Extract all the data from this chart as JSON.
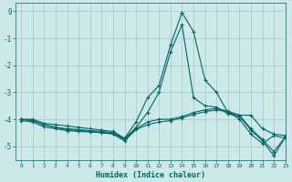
{
  "background_color": "#cce8e8",
  "grid_color": "#aacccc",
  "line_color": "#006666",
  "xlabel": "Humidex (Indice chaleur)",
  "xlim": [
    -0.5,
    23
  ],
  "ylim": [
    -5.5,
    0.3
  ],
  "yticks": [
    0,
    -1,
    -2,
    -3,
    -4,
    -5
  ],
  "xticks": [
    0,
    1,
    2,
    3,
    4,
    5,
    6,
    7,
    8,
    9,
    10,
    11,
    12,
    13,
    14,
    15,
    16,
    17,
    18,
    19,
    20,
    21,
    22,
    23
  ],
  "series": [
    {
      "x": [
        0,
        1,
        2,
        3,
        4,
        5,
        6,
        7,
        8,
        9,
        10,
        11,
        12,
        13,
        14,
        15,
        16,
        17,
        18,
        19,
        20,
        21,
        22,
        23
      ],
      "y": [
        -4.0,
        -4.0,
        -4.15,
        -4.2,
        -4.25,
        -4.3,
        -4.35,
        -4.4,
        -4.45,
        -4.7,
        -4.1,
        -3.2,
        -2.75,
        -1.25,
        -0.05,
        -0.75,
        -2.55,
        -3.0,
        -3.75,
        -3.85,
        -3.85,
        -4.35,
        -4.55,
        -4.6
      ]
    },
    {
      "x": [
        0,
        1,
        2,
        3,
        4,
        5,
        6,
        7,
        8,
        9,
        10,
        11,
        12,
        13,
        14,
        15,
        16,
        17,
        18,
        19,
        20,
        21,
        22,
        23
      ],
      "y": [
        -4.0,
        -4.05,
        -4.2,
        -4.3,
        -4.35,
        -4.38,
        -4.42,
        -4.45,
        -4.5,
        -4.72,
        -4.3,
        -3.75,
        -3.0,
        -1.5,
        -0.5,
        -3.2,
        -3.5,
        -3.55,
        -3.8,
        -3.9,
        -4.4,
        -4.8,
        -5.35,
        -4.65
      ]
    },
    {
      "x": [
        0,
        1,
        2,
        3,
        4,
        5,
        6,
        7,
        8,
        9,
        10,
        11,
        12,
        13,
        14,
        15,
        16,
        17,
        18,
        19,
        20,
        21,
        22,
        23
      ],
      "y": [
        -4.0,
        -4.05,
        -4.2,
        -4.3,
        -4.38,
        -4.42,
        -4.45,
        -4.48,
        -4.52,
        -4.75,
        -4.35,
        -4.1,
        -4.0,
        -4.0,
        -3.9,
        -3.75,
        -3.65,
        -3.6,
        -3.7,
        -3.85,
        -4.35,
        -4.75,
        -5.2,
        -4.65
      ]
    },
    {
      "x": [
        0,
        1,
        2,
        3,
        4,
        5,
        6,
        7,
        8,
        9,
        10,
        11,
        12,
        13,
        14,
        15,
        16,
        17,
        18,
        19,
        20,
        21,
        22,
        23
      ],
      "y": [
        -4.05,
        -4.1,
        -4.28,
        -4.35,
        -4.42,
        -4.45,
        -4.47,
        -4.5,
        -4.55,
        -4.8,
        -4.38,
        -4.2,
        -4.1,
        -4.05,
        -3.95,
        -3.82,
        -3.72,
        -3.65,
        -3.72,
        -4.0,
        -4.55,
        -4.9,
        -4.6,
        -4.7
      ]
    }
  ]
}
